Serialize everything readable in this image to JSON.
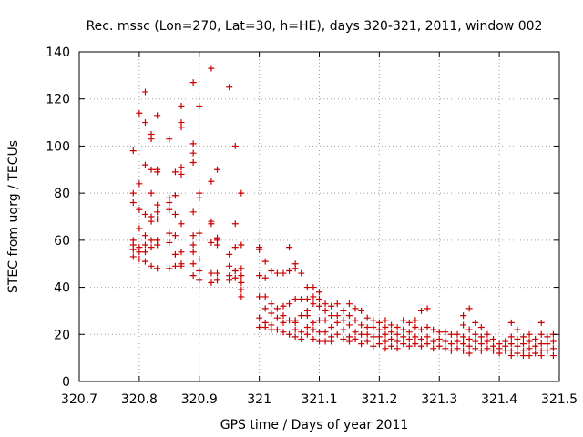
{
  "chart_data": {
    "type": "scatter",
    "title": "Rec. mssc (Lon=270, Lat=30, h=HE), days 320-321, 2011, window 002",
    "xlabel": "GPS time / Days of year 2011",
    "ylabel": "STEC from uqrg / TECUs",
    "xlim": [
      320.7,
      321.5
    ],
    "ylim": [
      0,
      140
    ],
    "xticks": [
      "320.7",
      "320.8",
      "320.9",
      "321",
      "321.1",
      "321.2",
      "321.3",
      "321.4",
      "321.5"
    ],
    "yticks": [
      "0",
      "20",
      "40",
      "60",
      "80",
      "100",
      "120",
      "140"
    ],
    "grid": true,
    "marker": "plus",
    "color": "#cc0000",
    "points": [
      [
        320.79,
        98
      ],
      [
        320.79,
        80
      ],
      [
        320.79,
        76
      ],
      [
        320.79,
        60
      ],
      [
        320.79,
        58
      ],
      [
        320.79,
        56
      ],
      [
        320.79,
        53
      ],
      [
        320.8,
        114
      ],
      [
        320.8,
        84
      ],
      [
        320.8,
        73
      ],
      [
        320.8,
        65
      ],
      [
        320.8,
        57
      ],
      [
        320.8,
        55
      ],
      [
        320.8,
        52
      ],
      [
        320.81,
        123
      ],
      [
        320.81,
        110
      ],
      [
        320.81,
        92
      ],
      [
        320.81,
        71
      ],
      [
        320.81,
        62
      ],
      [
        320.81,
        58
      ],
      [
        320.81,
        55
      ],
      [
        320.81,
        51
      ],
      [
        320.82,
        105
      ],
      [
        320.82,
        103
      ],
      [
        320.82,
        90
      ],
      [
        320.82,
        80
      ],
      [
        320.82,
        70
      ],
      [
        320.82,
        68
      ],
      [
        320.82,
        60
      ],
      [
        320.82,
        57
      ],
      [
        320.82,
        49
      ],
      [
        320.83,
        113
      ],
      [
        320.83,
        90
      ],
      [
        320.83,
        89
      ],
      [
        320.83,
        75
      ],
      [
        320.83,
        72
      ],
      [
        320.83,
        69
      ],
      [
        320.83,
        60
      ],
      [
        320.83,
        58
      ],
      [
        320.83,
        48
      ],
      [
        320.85,
        103
      ],
      [
        320.85,
        78
      ],
      [
        320.85,
        76
      ],
      [
        320.85,
        73
      ],
      [
        320.85,
        63
      ],
      [
        320.85,
        59
      ],
      [
        320.85,
        48
      ],
      [
        320.86,
        89
      ],
      [
        320.86,
        79
      ],
      [
        320.86,
        71
      ],
      [
        320.86,
        62
      ],
      [
        320.86,
        54
      ],
      [
        320.86,
        49
      ],
      [
        320.87,
        117
      ],
      [
        320.87,
        110
      ],
      [
        320.87,
        108
      ],
      [
        320.87,
        91
      ],
      [
        320.87,
        88
      ],
      [
        320.87,
        67
      ],
      [
        320.87,
        55
      ],
      [
        320.87,
        50
      ],
      [
        320.87,
        49
      ],
      [
        320.89,
        127
      ],
      [
        320.89,
        101
      ],
      [
        320.89,
        97
      ],
      [
        320.89,
        93
      ],
      [
        320.89,
        72
      ],
      [
        320.89,
        62
      ],
      [
        320.89,
        58
      ],
      [
        320.89,
        55
      ],
      [
        320.89,
        50
      ],
      [
        320.89,
        45
      ],
      [
        320.9,
        117
      ],
      [
        320.9,
        80
      ],
      [
        320.9,
        78
      ],
      [
        320.9,
        63
      ],
      [
        320.9,
        52
      ],
      [
        320.9,
        47
      ],
      [
        320.9,
        43
      ],
      [
        320.92,
        133
      ],
      [
        320.92,
        85
      ],
      [
        320.92,
        68
      ],
      [
        320.92,
        67
      ],
      [
        320.92,
        59
      ],
      [
        320.92,
        46
      ],
      [
        320.92,
        42
      ],
      [
        320.93,
        90
      ],
      [
        320.93,
        61
      ],
      [
        320.93,
        60
      ],
      [
        320.93,
        58
      ],
      [
        320.93,
        46
      ],
      [
        320.93,
        43
      ],
      [
        320.95,
        125
      ],
      [
        320.95,
        54
      ],
      [
        320.95,
        49
      ],
      [
        320.95,
        45
      ],
      [
        320.95,
        43
      ],
      [
        320.96,
        100
      ],
      [
        320.96,
        67
      ],
      [
        320.96,
        57
      ],
      [
        320.96,
        47
      ],
      [
        320.96,
        44
      ],
      [
        320.97,
        80
      ],
      [
        320.97,
        58
      ],
      [
        320.97,
        48
      ],
      [
        320.97,
        45
      ],
      [
        320.97,
        42
      ],
      [
        320.97,
        39
      ],
      [
        320.97,
        36
      ],
      [
        321.0,
        57
      ],
      [
        321.0,
        56
      ],
      [
        321.0,
        45
      ],
      [
        321.0,
        36
      ],
      [
        321.0,
        27
      ],
      [
        321.0,
        23
      ],
      [
        321.01,
        51
      ],
      [
        321.01,
        44
      ],
      [
        321.01,
        36
      ],
      [
        321.01,
        31
      ],
      [
        321.01,
        25
      ],
      [
        321.01,
        23
      ],
      [
        321.02,
        47
      ],
      [
        321.02,
        33
      ],
      [
        321.02,
        29
      ],
      [
        321.02,
        24
      ],
      [
        321.02,
        22
      ],
      [
        321.03,
        46
      ],
      [
        321.03,
        31
      ],
      [
        321.03,
        27
      ],
      [
        321.03,
        22
      ],
      [
        321.04,
        46
      ],
      [
        321.04,
        32
      ],
      [
        321.04,
        28
      ],
      [
        321.04,
        25
      ],
      [
        321.04,
        21
      ],
      [
        321.05,
        57
      ],
      [
        321.05,
        47
      ],
      [
        321.05,
        33
      ],
      [
        321.05,
        26
      ],
      [
        321.05,
        20
      ],
      [
        321.06,
        50
      ],
      [
        321.06,
        48
      ],
      [
        321.06,
        35
      ],
      [
        321.06,
        26
      ],
      [
        321.06,
        25
      ],
      [
        321.06,
        22
      ],
      [
        321.06,
        19
      ],
      [
        321.07,
        46
      ],
      [
        321.07,
        35
      ],
      [
        321.07,
        28
      ],
      [
        321.07,
        21
      ],
      [
        321.07,
        18
      ],
      [
        321.08,
        40
      ],
      [
        321.08,
        35
      ],
      [
        321.08,
        30
      ],
      [
        321.08,
        28
      ],
      [
        321.08,
        23
      ],
      [
        321.08,
        20
      ],
      [
        321.09,
        40
      ],
      [
        321.09,
        36
      ],
      [
        321.09,
        33
      ],
      [
        321.09,
        25
      ],
      [
        321.09,
        22
      ],
      [
        321.09,
        18
      ],
      [
        321.1,
        38
      ],
      [
        321.1,
        35
      ],
      [
        321.1,
        32
      ],
      [
        321.1,
        26
      ],
      [
        321.1,
        21
      ],
      [
        321.1,
        17
      ],
      [
        321.11,
        33
      ],
      [
        321.11,
        30
      ],
      [
        321.11,
        26
      ],
      [
        321.11,
        21
      ],
      [
        321.11,
        17
      ],
      [
        321.12,
        32
      ],
      [
        321.12,
        28
      ],
      [
        321.12,
        23
      ],
      [
        321.12,
        19
      ],
      [
        321.12,
        17
      ],
      [
        321.13,
        33
      ],
      [
        321.13,
        28
      ],
      [
        321.13,
        25
      ],
      [
        321.13,
        20
      ],
      [
        321.14,
        30
      ],
      [
        321.14,
        26
      ],
      [
        321.14,
        22
      ],
      [
        321.14,
        18
      ],
      [
        321.15,
        33
      ],
      [
        321.15,
        28
      ],
      [
        321.15,
        24
      ],
      [
        321.15,
        19
      ],
      [
        321.15,
        17
      ],
      [
        321.16,
        31
      ],
      [
        321.16,
        26
      ],
      [
        321.16,
        21
      ],
      [
        321.16,
        18
      ],
      [
        321.17,
        30
      ],
      [
        321.17,
        24
      ],
      [
        321.17,
        20
      ],
      [
        321.17,
        16
      ],
      [
        321.18,
        27
      ],
      [
        321.18,
        23
      ],
      [
        321.18,
        20
      ],
      [
        321.18,
        17
      ],
      [
        321.19,
        26
      ],
      [
        321.19,
        23
      ],
      [
        321.19,
        19
      ],
      [
        321.19,
        15
      ],
      [
        321.2,
        25
      ],
      [
        321.2,
        22
      ],
      [
        321.2,
        19
      ],
      [
        321.2,
        16
      ],
      [
        321.21,
        26
      ],
      [
        321.21,
        23
      ],
      [
        321.21,
        20
      ],
      [
        321.21,
        17
      ],
      [
        321.21,
        14
      ],
      [
        321.22,
        24
      ],
      [
        321.22,
        21
      ],
      [
        321.22,
        18
      ],
      [
        321.22,
        15
      ],
      [
        321.23,
        23
      ],
      [
        321.23,
        20
      ],
      [
        321.23,
        17
      ],
      [
        321.23,
        14
      ],
      [
        321.24,
        26
      ],
      [
        321.24,
        22
      ],
      [
        321.24,
        19
      ],
      [
        321.24,
        16
      ],
      [
        321.25,
        25
      ],
      [
        321.25,
        21
      ],
      [
        321.25,
        18
      ],
      [
        321.25,
        15
      ],
      [
        321.26,
        26
      ],
      [
        321.26,
        23
      ],
      [
        321.26,
        19
      ],
      [
        321.26,
        16
      ],
      [
        321.27,
        30
      ],
      [
        321.27,
        22
      ],
      [
        321.27,
        18
      ],
      [
        321.27,
        15
      ],
      [
        321.28,
        31
      ],
      [
        321.28,
        23
      ],
      [
        321.28,
        19
      ],
      [
        321.28,
        16
      ],
      [
        321.29,
        22
      ],
      [
        321.29,
        17
      ],
      [
        321.29,
        14
      ],
      [
        321.3,
        21
      ],
      [
        321.3,
        18
      ],
      [
        321.3,
        15
      ],
      [
        321.31,
        21
      ],
      [
        321.31,
        17
      ],
      [
        321.31,
        14
      ],
      [
        321.32,
        20
      ],
      [
        321.32,
        16
      ],
      [
        321.32,
        13
      ],
      [
        321.33,
        20
      ],
      [
        321.33,
        17
      ],
      [
        321.33,
        14
      ],
      [
        321.34,
        28
      ],
      [
        321.34,
        24
      ],
      [
        321.34,
        19
      ],
      [
        321.34,
        16
      ],
      [
        321.34,
        13
      ],
      [
        321.35,
        31
      ],
      [
        321.35,
        22
      ],
      [
        321.35,
        18
      ],
      [
        321.35,
        15
      ],
      [
        321.35,
        12
      ],
      [
        321.36,
        25
      ],
      [
        321.36,
        20
      ],
      [
        321.36,
        17
      ],
      [
        321.36,
        14
      ],
      [
        321.37,
        23
      ],
      [
        321.37,
        19
      ],
      [
        321.37,
        16
      ],
      [
        321.37,
        13
      ],
      [
        321.38,
        20
      ],
      [
        321.38,
        17
      ],
      [
        321.38,
        14
      ],
      [
        321.39,
        18
      ],
      [
        321.39,
        15
      ],
      [
        321.39,
        13
      ],
      [
        321.4,
        16
      ],
      [
        321.4,
        14
      ],
      [
        321.4,
        12
      ],
      [
        321.41,
        17
      ],
      [
        321.41,
        15
      ],
      [
        321.41,
        13
      ],
      [
        321.42,
        25
      ],
      [
        321.42,
        19
      ],
      [
        321.42,
        16
      ],
      [
        321.42,
        13
      ],
      [
        321.42,
        11
      ],
      [
        321.43,
        22
      ],
      [
        321.43,
        18
      ],
      [
        321.43,
        15
      ],
      [
        321.43,
        12
      ],
      [
        321.44,
        19
      ],
      [
        321.44,
        16
      ],
      [
        321.44,
        13
      ],
      [
        321.44,
        11
      ],
      [
        321.45,
        20
      ],
      [
        321.45,
        17
      ],
      [
        321.45,
        14
      ],
      [
        321.45,
        11
      ],
      [
        321.46,
        18
      ],
      [
        321.46,
        15
      ],
      [
        321.46,
        12
      ],
      [
        321.47,
        25
      ],
      [
        321.47,
        20
      ],
      [
        321.47,
        16
      ],
      [
        321.47,
        13
      ],
      [
        321.47,
        11
      ],
      [
        321.48,
        19
      ],
      [
        321.48,
        16
      ],
      [
        321.48,
        13
      ],
      [
        321.49,
        20
      ],
      [
        321.49,
        17
      ],
      [
        321.49,
        14
      ],
      [
        321.49,
        11
      ]
    ]
  }
}
